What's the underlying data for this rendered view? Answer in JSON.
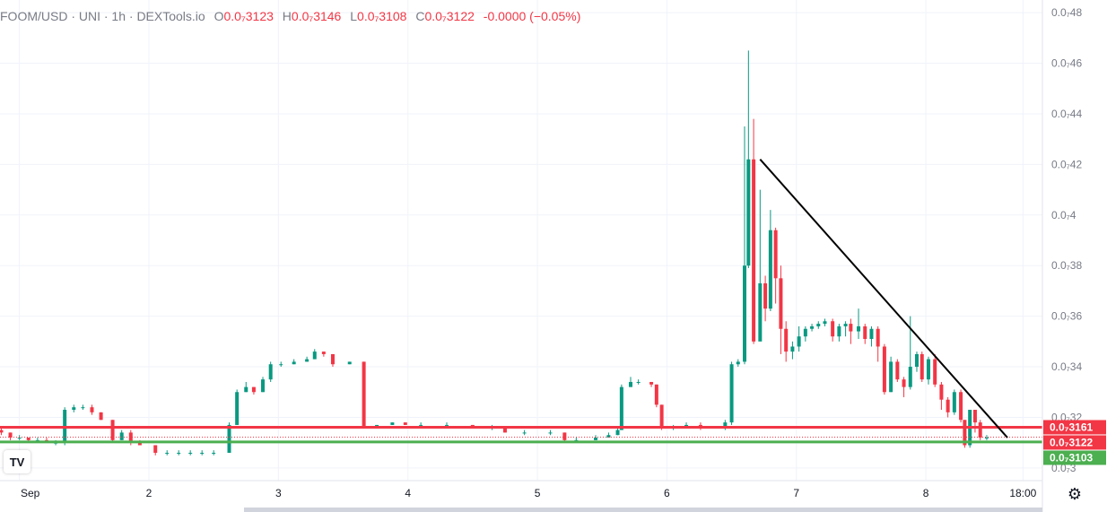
{
  "legend": {
    "symbol": "FOOM/USD · UNI · 1h · DEXTools.io",
    "o_label": "O",
    "o_value": "0.0₇3123",
    "h_label": "H",
    "h_value": "0.0₇3146",
    "l_label": "L",
    "l_value": "0.0₇3108",
    "c_label": "C",
    "c_value": "0.0₇3122",
    "change": "-0.0000 (−0.05%)"
  },
  "colors": {
    "up": "#089981",
    "down": "#f23645",
    "resistance": "#f23645",
    "support": "#4caf50",
    "trendline": "#000000",
    "grid": "#f0f3fa",
    "axis_text": "#787b86"
  },
  "icons": {
    "logo": "tradingview-logo-icon",
    "settings": "gear-icon"
  },
  "logo_text": "TV",
  "settings_glyph": "⚙",
  "chart_data": {
    "type": "candlestick",
    "y_tick_labels": [
      "0.0₇48",
      "0.0₇46",
      "0.0₇44",
      "0.0₇42",
      "0.0₇4",
      "0.0₇38",
      "0.0₇36",
      "0.0₇34",
      "0.0₇32",
      "0.0₇3"
    ],
    "y_tick_values": [
      48,
      46,
      44,
      42,
      40,
      38,
      36,
      34,
      32,
      30
    ],
    "ylim": [
      29.5,
      48.5
    ],
    "x_tick_labels": [
      "Sep",
      "2",
      "3",
      "4",
      "5",
      "6",
      "7",
      "8",
      "18:00"
    ],
    "x_tick_values": [
      1,
      2,
      3,
      4,
      5,
      6,
      7,
      8,
      8.75
    ],
    "xlim": [
      0.85,
      8.9
    ],
    "price_labels": [
      {
        "text": "0.0₇3161",
        "value": 31.61,
        "color": "#f23645"
      },
      {
        "text": "0.0₇3122",
        "value": 31.22,
        "color": "#f23645"
      },
      {
        "text": "0.0₇3103",
        "value": 31.03,
        "color": "#4caf50"
      }
    ],
    "horizontal_lines": [
      {
        "name": "resistance",
        "value": 31.61,
        "color": "#f23645"
      },
      {
        "name": "support",
        "value": 31.03,
        "color": "#4caf50"
      }
    ],
    "current_price": 31.22,
    "trendline": {
      "x": [
        6.72,
        8.63
      ],
      "y": [
        42.2,
        31.2
      ]
    },
    "candles": [
      [
        0.86,
        31.5,
        31.4,
        31.6,
        31.3
      ],
      [
        0.93,
        31.4,
        31.2,
        31.4,
        31.1
      ],
      [
        1.0,
        31.2,
        31.2,
        31.3,
        31.1
      ],
      [
        1.07,
        31.2,
        31.1,
        31.2,
        31.0
      ],
      [
        1.14,
        31.1,
        31.1,
        31.2,
        31.0
      ],
      [
        1.21,
        31.1,
        31.0,
        31.2,
        31.0
      ],
      [
        1.28,
        31.0,
        31.0,
        31.1,
        30.9
      ],
      [
        1.35,
        31.0,
        32.3,
        32.4,
        30.9
      ],
      [
        1.42,
        32.3,
        32.4,
        32.5,
        32.2
      ],
      [
        1.49,
        32.4,
        32.4,
        32.5,
        32.3
      ],
      [
        1.56,
        32.4,
        32.2,
        32.5,
        32.1
      ],
      [
        1.63,
        32.2,
        31.9,
        32.2,
        31.9
      ],
      [
        1.72,
        31.9,
        31.1,
        31.9,
        31.0
      ],
      [
        1.79,
        31.1,
        31.4,
        31.5,
        31.1
      ],
      [
        1.86,
        31.4,
        31.0,
        31.5,
        30.9
      ],
      [
        1.93,
        31.0,
        30.9,
        31.1,
        30.9
      ],
      [
        2.05,
        30.9,
        30.6,
        30.9,
        30.5
      ],
      [
        2.14,
        30.6,
        30.6,
        30.7,
        30.5
      ],
      [
        2.23,
        30.6,
        30.6,
        30.7,
        30.5
      ],
      [
        2.32,
        30.6,
        30.6,
        30.7,
        30.5
      ],
      [
        2.41,
        30.6,
        30.6,
        30.7,
        30.5
      ],
      [
        2.5,
        30.6,
        30.6,
        30.7,
        30.5
      ],
      [
        2.62,
        30.6,
        31.7,
        31.8,
        30.6
      ],
      [
        2.68,
        31.7,
        33.0,
        33.1,
        31.7
      ],
      [
        2.75,
        33.0,
        33.2,
        33.4,
        33.0
      ],
      [
        2.81,
        33.2,
        33.0,
        33.2,
        32.9
      ],
      [
        2.88,
        33.0,
        33.5,
        33.6,
        33.0
      ],
      [
        2.94,
        33.5,
        34.1,
        34.2,
        33.4
      ],
      [
        3.02,
        34.1,
        34.1,
        34.2,
        34.0
      ],
      [
        3.12,
        34.1,
        34.2,
        34.3,
        34.1
      ],
      [
        3.22,
        34.2,
        34.3,
        34.4,
        34.2
      ],
      [
        3.28,
        34.3,
        34.6,
        34.7,
        34.3
      ],
      [
        3.35,
        34.6,
        34.5,
        34.6,
        34.4
      ],
      [
        3.42,
        34.5,
        34.1,
        34.5,
        34.0
      ],
      [
        3.55,
        34.1,
        34.2,
        34.2,
        34.1
      ],
      [
        3.66,
        34.2,
        31.6,
        34.2,
        31.6
      ],
      [
        3.76,
        31.6,
        31.7,
        31.7,
        31.6
      ],
      [
        3.88,
        31.7,
        31.8,
        31.8,
        31.7
      ],
      [
        3.98,
        31.8,
        31.7,
        31.8,
        31.7
      ],
      [
        4.1,
        31.7,
        31.7,
        31.8,
        31.6
      ],
      [
        4.3,
        31.7,
        31.7,
        31.8,
        31.6
      ],
      [
        4.5,
        31.7,
        31.6,
        31.7,
        31.6
      ],
      [
        4.65,
        31.6,
        31.6,
        31.7,
        31.5
      ],
      [
        4.75,
        31.6,
        31.4,
        31.6,
        31.4
      ],
      [
        4.9,
        31.4,
        31.4,
        31.5,
        31.3
      ],
      [
        5.1,
        31.4,
        31.4,
        31.5,
        31.3
      ],
      [
        5.21,
        31.4,
        31.1,
        31.4,
        31.0
      ],
      [
        5.3,
        31.1,
        31.1,
        31.2,
        31.0
      ],
      [
        5.45,
        31.1,
        31.2,
        31.3,
        31.1
      ],
      [
        5.55,
        31.2,
        31.3,
        31.4,
        31.2
      ],
      [
        5.62,
        31.3,
        31.5,
        31.6,
        31.3
      ],
      [
        5.65,
        31.5,
        33.2,
        33.3,
        31.5
      ],
      [
        5.72,
        33.2,
        33.4,
        33.6,
        33.2
      ],
      [
        5.78,
        33.4,
        33.4,
        33.5,
        33.3
      ],
      [
        5.88,
        33.4,
        33.3,
        33.4,
        33.2
      ],
      [
        5.92,
        33.3,
        32.5,
        33.3,
        32.4
      ],
      [
        5.96,
        32.5,
        31.6,
        32.5,
        31.5
      ],
      [
        6.05,
        31.6,
        31.6,
        31.7,
        31.5
      ],
      [
        6.15,
        31.6,
        31.7,
        31.8,
        31.6
      ],
      [
        6.26,
        31.7,
        31.6,
        31.8,
        31.5
      ],
      [
        6.45,
        31.6,
        31.8,
        31.9,
        31.5
      ],
      [
        6.5,
        31.8,
        34.1,
        34.2,
        31.7
      ],
      [
        6.55,
        34.1,
        34.2,
        34.3,
        34.0
      ],
      [
        6.6,
        34.2,
        38.0,
        43.5,
        34.1
      ],
      [
        6.63,
        38.0,
        42.2,
        46.5,
        37.9
      ],
      [
        6.67,
        42.2,
        35.0,
        43.8,
        34.9
      ],
      [
        6.72,
        35.0,
        37.3,
        41.0,
        35.5
      ],
      [
        6.76,
        37.3,
        36.3,
        37.6,
        35.8
      ],
      [
        6.8,
        36.3,
        39.4,
        40.2,
        36.2
      ],
      [
        6.84,
        39.4,
        37.5,
        39.5,
        36.5
      ],
      [
        6.88,
        37.5,
        35.5,
        38.0,
        34.5
      ],
      [
        6.92,
        35.5,
        34.6,
        35.8,
        34.2
      ],
      [
        6.97,
        34.6,
        34.8,
        35.0,
        34.3
      ],
      [
        7.02,
        34.8,
        35.2,
        35.6,
        34.6
      ],
      [
        7.07,
        35.2,
        35.5,
        35.6,
        35.0
      ],
      [
        7.12,
        35.5,
        35.6,
        35.7,
        35.4
      ],
      [
        7.17,
        35.6,
        35.7,
        35.8,
        35.5
      ],
      [
        7.22,
        35.7,
        35.8,
        35.9,
        35.6
      ],
      [
        7.28,
        35.8,
        35.2,
        35.9,
        35.0
      ],
      [
        7.33,
        35.2,
        35.6,
        35.7,
        35.0
      ],
      [
        7.38,
        35.6,
        35.7,
        35.8,
        35.2
      ],
      [
        7.42,
        35.7,
        35.4,
        35.9,
        34.9
      ],
      [
        7.48,
        35.4,
        35.6,
        36.3,
        35.1
      ],
      [
        7.53,
        35.6,
        35.1,
        35.7,
        34.9
      ],
      [
        7.58,
        35.1,
        35.5,
        35.6,
        34.8
      ],
      [
        7.63,
        35.5,
        34.8,
        35.6,
        34.2
      ],
      [
        7.68,
        34.8,
        33.0,
        34.9,
        32.9
      ],
      [
        7.73,
        33.0,
        34.2,
        34.4,
        33.0
      ],
      [
        7.78,
        34.2,
        33.5,
        34.3,
        33.4
      ],
      [
        7.83,
        33.5,
        33.2,
        33.6,
        32.8
      ],
      [
        7.88,
        33.2,
        34.0,
        36.0,
        33.1
      ],
      [
        7.93,
        34.0,
        34.5,
        34.6,
        33.8
      ],
      [
        7.97,
        34.5,
        33.5,
        34.6,
        33.4
      ],
      [
        8.02,
        33.5,
        34.3,
        34.4,
        33.3
      ],
      [
        8.07,
        34.3,
        33.3,
        34.5,
        33.2
      ],
      [
        8.12,
        33.3,
        32.7,
        33.4,
        32.3
      ],
      [
        8.17,
        32.7,
        32.2,
        32.8,
        32.0
      ],
      [
        8.22,
        32.2,
        33.0,
        33.1,
        32.1
      ],
      [
        8.27,
        33.0,
        31.9,
        33.1,
        31.8
      ],
      [
        8.3,
        31.9,
        30.9,
        31.9,
        30.8
      ],
      [
        8.34,
        30.9,
        32.3,
        32.3,
        30.8
      ],
      [
        8.38,
        32.3,
        31.8,
        32.3,
        31.4
      ],
      [
        8.42,
        31.8,
        31.2,
        31.9,
        31.1
      ],
      [
        8.47,
        31.2,
        31.2,
        31.3,
        31.1
      ]
    ]
  }
}
